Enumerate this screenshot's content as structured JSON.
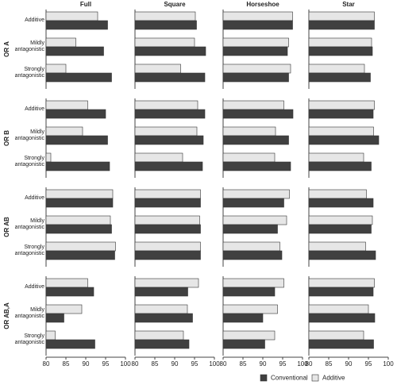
{
  "chart_data": {
    "type": "faceted-bar",
    "columns": [
      "Full",
      "Square",
      "Horseshoe",
      "Star"
    ],
    "rows": [
      "OR A",
      "OR B",
      "OR AB",
      "OR AB,A"
    ],
    "categories": [
      "Additive",
      "Mildly antagonistic",
      "Strongly antagonistic"
    ],
    "xlim": [
      80,
      100
    ],
    "xticks": [
      80,
      85,
      90,
      95,
      100
    ],
    "series": [
      {
        "name": "Conventional",
        "color": "#404040",
        "values": [
          [
            [
              95.5,
              94.5,
              96.5
            ],
            [
              95.5,
              97.8,
              97.6
            ],
            [
              97.5,
              96.2,
              96.5
            ],
            [
              96.5,
              96,
              95.5
            ]
          ],
          [
            [
              95,
              95.5,
              96
            ],
            [
              97.6,
              97.2,
              97
            ],
            [
              97.6,
              96.5,
              97
            ],
            [
              96.2,
              97.6,
              95.7
            ]
          ],
          [
            [
              96.8,
              96.5,
              97.3
            ],
            [
              96.5,
              96.5,
              96.5
            ],
            [
              95.3,
              93.7,
              94.8
            ],
            [
              96.2,
              95.7,
              96.8
            ]
          ],
          [
            [
              92,
              84.5,
              92.3
            ],
            [
              93.3,
              94.5,
              93.6
            ],
            [
              93,
              90,
              90.5
            ],
            [
              96.2,
              96.6,
              96.3
            ]
          ]
        ]
      },
      {
        "name": "Additive",
        "color": "#e6e6e6",
        "values": [
          [
            [
              93,
              87.5,
              85
            ],
            [
              95.2,
              95,
              91.5
            ],
            [
              97.5,
              96.5,
              97
            ],
            [
              96.5,
              95.8,
              94
            ]
          ],
          [
            [
              90.5,
              89.2,
              81.2
            ],
            [
              95.8,
              95.6,
              92
            ],
            [
              95.3,
              93.2,
              93
            ],
            [
              96.5,
              96.3,
              93.8
            ]
          ],
          [
            [
              96.8,
              96.2,
              97.5
            ],
            [
              96.5,
              96.3,
              96.5
            ],
            [
              96.7,
              96,
              94.3
            ],
            [
              94.5,
              96,
              94.3
            ]
          ],
          [
            [
              90.5,
              89,
              82.3
            ],
            [
              96,
              93.2,
              92.2
            ],
            [
              95.3,
              93.7,
              93
            ],
            [
              96.5,
              95,
              93.8
            ]
          ]
        ]
      }
    ]
  }
}
